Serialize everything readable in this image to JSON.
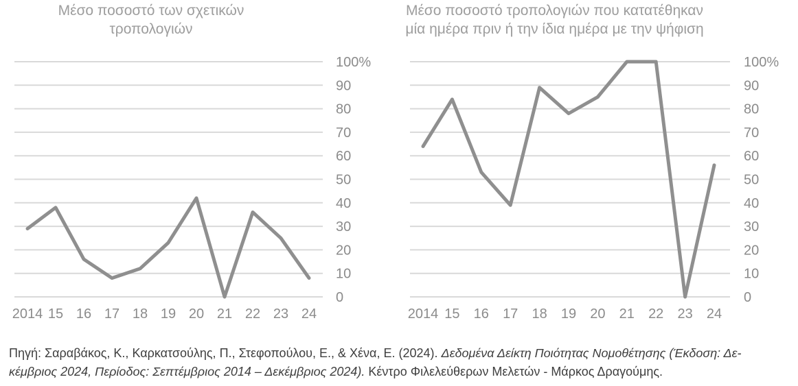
{
  "colors": {
    "background": "#ffffff",
    "line": "#8f8f8f",
    "grid": "#d9d9d9",
    "axis_label": "#8b8b8b",
    "title": "#9d9d9d",
    "source_text": "#3e3e3e"
  },
  "chart_data": [
    {
      "type": "line",
      "title": "Μέσο ποσοστό των σχετικών τροπολογιών",
      "title_lines": [
        "Μέσο ποσοστό των σχετικών",
        "τροπολογιών"
      ],
      "categories": [
        "2014",
        "15",
        "16",
        "17",
        "18",
        "19",
        "20",
        "21",
        "22",
        "23",
        "24"
      ],
      "values": [
        29,
        38,
        16,
        8,
        12,
        23,
        42,
        0,
        36,
        25,
        8
      ],
      "unit": "%",
      "ylim": [
        0,
        100
      ],
      "ytick_labels": [
        "100%",
        "90",
        "80",
        "70",
        "60",
        "50",
        "40",
        "30",
        "20",
        "10",
        "0"
      ],
      "grid": "horizontal",
      "legend": "none",
      "ytick_side": "right"
    },
    {
      "type": "line",
      "title": "Μέσο ποσοστό τροπολογιών που κατατέθηκαν μία ημέρα πριν ή την ίδια ημέρα με την ψήφιση",
      "title_lines": [
        "Μέσο ποσοστό τροπολογιών που κατατέθηκαν",
        "μία ημέρα πριν ή την ίδια ημέρα με την ψήφιση"
      ],
      "categories": [
        "2014",
        "15",
        "16",
        "17",
        "18",
        "19",
        "20",
        "21",
        "22",
        "23",
        "24"
      ],
      "values": [
        64,
        84,
        53,
        39,
        89,
        78,
        85,
        100,
        100,
        0,
        56
      ],
      "unit": "%",
      "ylim": [
        0,
        100
      ],
      "ytick_labels": [
        "100%",
        "90",
        "80",
        "70",
        "60",
        "50",
        "40",
        "30",
        "20",
        "10",
        "0"
      ],
      "grid": "horizontal",
      "legend": "none",
      "ytick_side": "right"
    }
  ],
  "source": {
    "line1_normal": "Πηγή: Σαραβάκος, Κ., Καρκατσούλης, Π., Στεφοπούλου, Ε., & Χένα, Ε. (2024). ",
    "line1_italic": "Δεδομένα Δείκτη Ποιότητας Νομοθέτησης (Έκδοση: Δε-",
    "line2_italic": "κέμβριος 2024, Περίοδος: Σεπτέμβριος 2014 – Δεκέμβριος 2024).",
    "line2_normal": " Κέντρο Φιλελεύθερων Μελετών - Μάρκος Δραγούμης."
  }
}
